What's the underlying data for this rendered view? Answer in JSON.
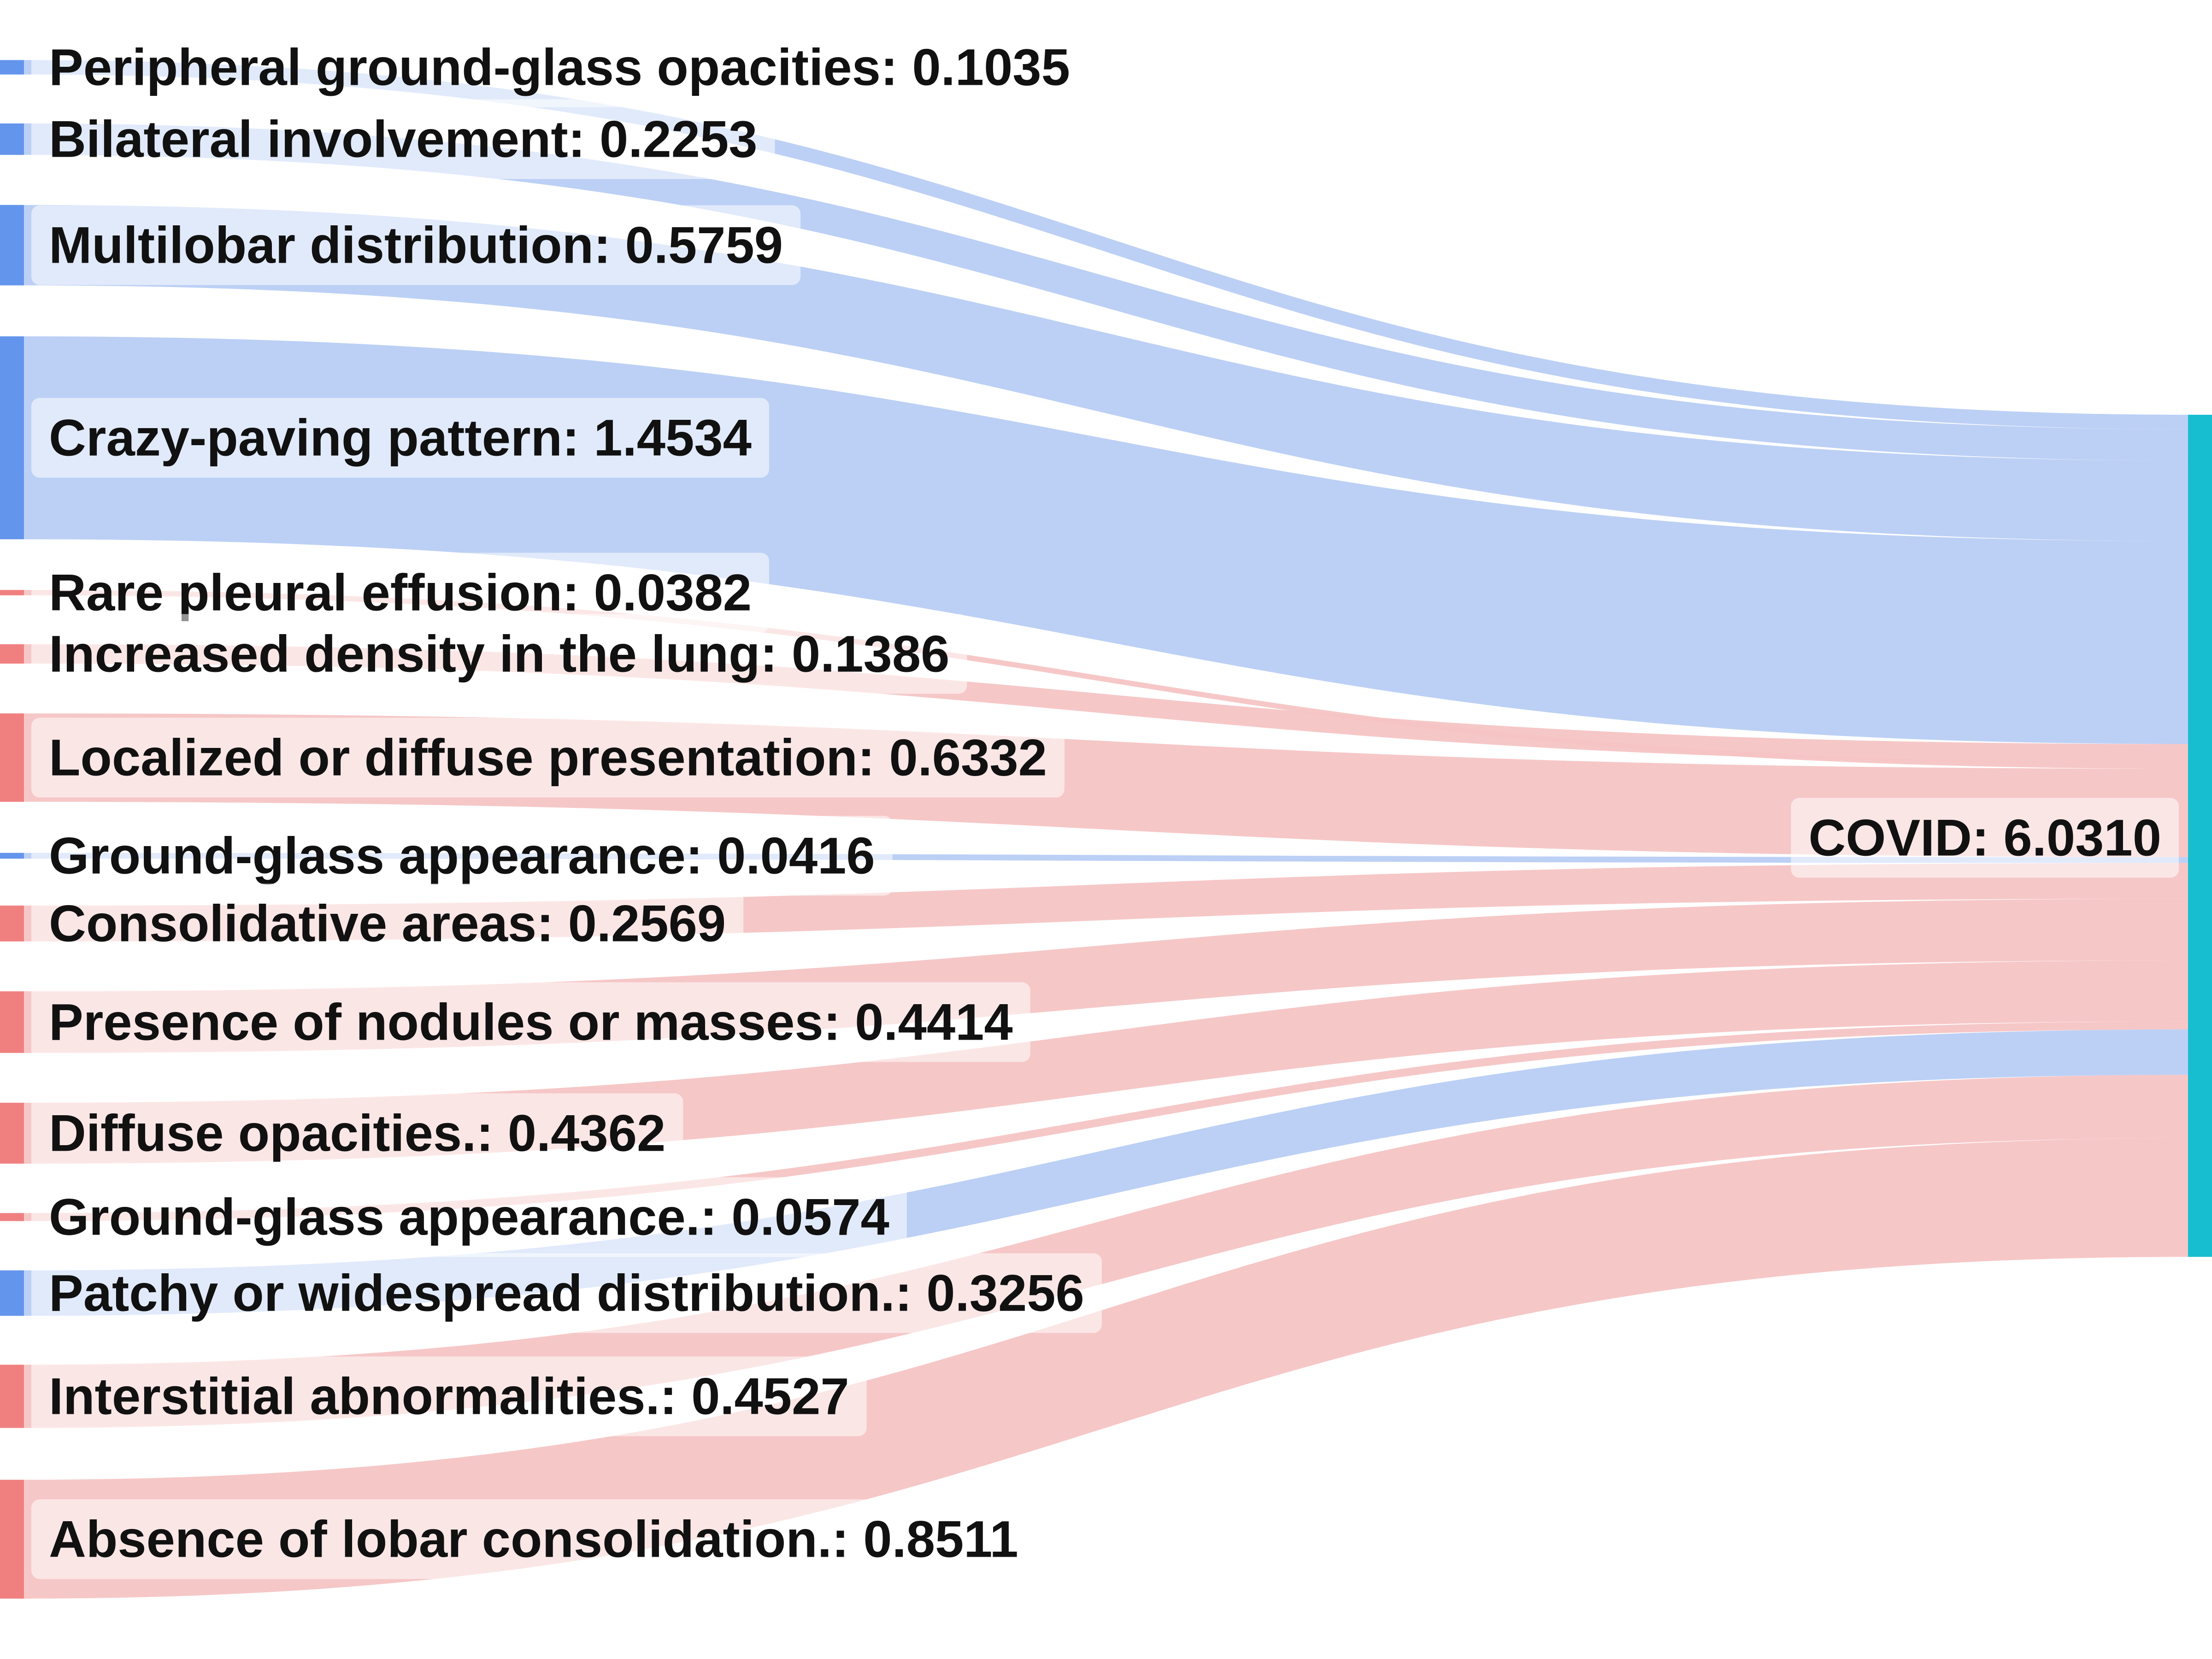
{
  "chart_data": {
    "type": "sankey",
    "target": {
      "name": "COVID",
      "value": "6.0310",
      "color": "#17becf"
    },
    "sources": [
      {
        "name": "Peripheral ground-glass opacities",
        "value": "0.1035",
        "sign": "positive"
      },
      {
        "name": "Bilateral involvement",
        "value": "0.2253",
        "sign": "positive"
      },
      {
        "name": "Multilobar distribution",
        "value": "0.5759",
        "sign": "positive"
      },
      {
        "name": "Crazy-paving pattern",
        "value": "1.4534",
        "sign": "positive"
      },
      {
        "name": "Rare pleural effusion",
        "value": "0.0382",
        "sign": "negative"
      },
      {
        "name": "Increased density in the lung",
        "value": "0.1386",
        "sign": "negative"
      },
      {
        "name": "Localized or diffuse presentation",
        "value": "0.6332",
        "sign": "negative"
      },
      {
        "name": "Ground-glass appearance",
        "value": "0.0416",
        "sign": "positive"
      },
      {
        "name": "Consolidative areas",
        "value": "0.2569",
        "sign": "negative"
      },
      {
        "name": "Presence of nodules or masses",
        "value": "0.4414",
        "sign": "negative"
      },
      {
        "name": "Diffuse opacities.",
        "value": "0.4362",
        "sign": "negative"
      },
      {
        "name": "Ground-glass appearance.",
        "value": "0.0574",
        "sign": "negative"
      },
      {
        "name": "Patchy or widespread distribution.",
        "value": "0.3256",
        "sign": "positive"
      },
      {
        "name": "Interstitial abnormalities.",
        "value": "0.4527",
        "sign": "negative"
      },
      {
        "name": "Absence of lobar consolidation.",
        "value": "0.8511",
        "sign": "negative"
      }
    ]
  },
  "colors": {
    "positive_node": "#6495ed",
    "positive_link": "#b8cdf4",
    "negative_node": "#f08080",
    "negative_link": "#f6c4c4",
    "target_node": "#17becf",
    "label_box": "#ffffff"
  }
}
